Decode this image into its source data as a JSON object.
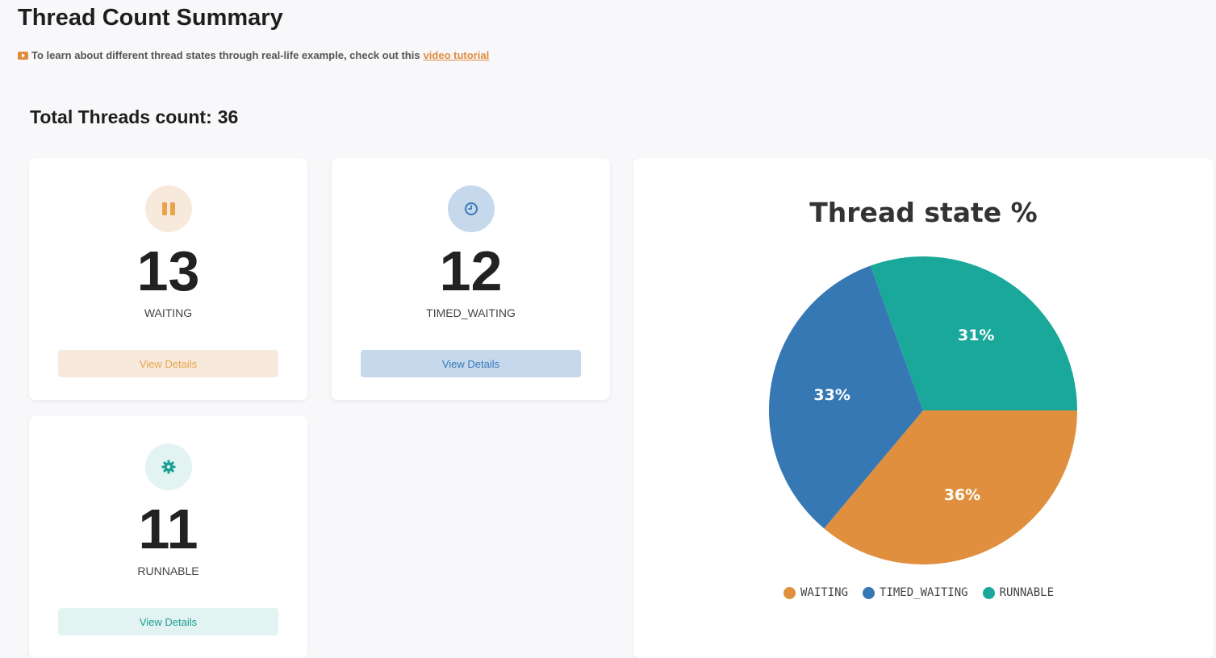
{
  "header": {
    "title": "Thread Count Summary",
    "tutorial_text": "To learn about different thread states through real-life example, check out this",
    "tutorial_link": "video tutorial",
    "tutorial_icon": "youtube-play-icon"
  },
  "summary": {
    "total_label": "Total Threads count:",
    "total_value": "36"
  },
  "cards": {
    "waiting": {
      "count": "13",
      "label": "WAITING",
      "button": "View Details",
      "icon": "pause-icon",
      "color": "#e8a34b",
      "bg": "#f7e9dc"
    },
    "timed_waiting": {
      "count": "12",
      "label": "TIMED_WAITING",
      "button": "View Details",
      "icon": "clock-icon",
      "color": "#3a78b8",
      "bg": "#c5d8ec"
    },
    "runnable": {
      "count": "11",
      "label": "RUNNABLE",
      "button": "View Details",
      "icon": "gear-icon",
      "color": "#1a9e91",
      "bg": "#e2f3f2"
    }
  },
  "chart_data": {
    "type": "pie",
    "title": "Thread state %",
    "categories": [
      "WAITING",
      "TIMED_WAITING",
      "RUNNABLE"
    ],
    "values": [
      13,
      12,
      11
    ],
    "labels": [
      "36%",
      "33%",
      "31%"
    ],
    "colors": [
      "#e08f3e",
      "#3578b4",
      "#1aa89b"
    ],
    "legend_position": "bottom"
  }
}
